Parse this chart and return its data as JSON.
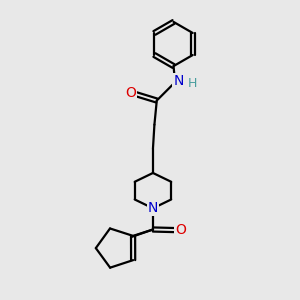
{
  "bg_color": "#e8e8e8",
  "atom_colors": {
    "C": "#000000",
    "N": "#0000cc",
    "O": "#dd0000",
    "H": "#4a9e9e"
  },
  "bond_color": "#000000",
  "bond_width": 1.6,
  "fig_size": [
    3.0,
    3.0
  ],
  "dpi": 100,
  "xlim": [
    0,
    10
  ],
  "ylim": [
    0,
    10
  ]
}
